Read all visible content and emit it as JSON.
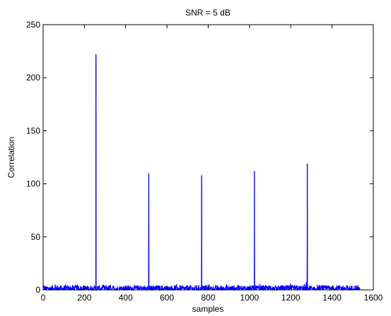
{
  "chart_data": {
    "type": "line",
    "title": "SNR = 5 dB",
    "xlabel": "samples",
    "ylabel": "Correlation",
    "xlim": [
      0,
      1600
    ],
    "ylim": [
      0,
      250
    ],
    "xticks": [
      0,
      200,
      400,
      600,
      800,
      1000,
      1200,
      1400,
      1600
    ],
    "yticks": [
      0,
      50,
      100,
      150,
      200,
      250
    ],
    "grid": false,
    "x_end": 1535,
    "noise_floor_approx": [
      0,
      8
    ],
    "series": [
      {
        "color": "#0000ff",
        "peaks": [
          {
            "x": 256,
            "y": 222
          },
          {
            "x": 512,
            "y": 110
          },
          {
            "x": 768,
            "y": 108
          },
          {
            "x": 1024,
            "y": 112
          },
          {
            "x": 1280,
            "y": 119
          }
        ]
      }
    ]
  }
}
